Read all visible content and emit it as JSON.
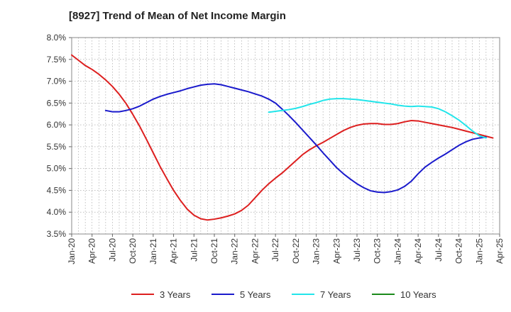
{
  "chart_data": {
    "type": "line",
    "title": "[8927]  Trend of Mean of Net Income Margin",
    "xlabel": "",
    "ylabel": "",
    "x_ticks": [
      "Jan-20",
      "Apr-20",
      "Jul-20",
      "Oct-20",
      "Jan-21",
      "Apr-21",
      "Jul-21",
      "Oct-21",
      "Jan-22",
      "Apr-22",
      "Jul-22",
      "Oct-22",
      "Jan-23",
      "Apr-23",
      "Jul-23",
      "Oct-23",
      "Jan-24",
      "Apr-24",
      "Jul-24",
      "Oct-24",
      "Jan-25",
      "Apr-25"
    ],
    "y_ticks": [
      "3.5%",
      "4.0%",
      "4.5%",
      "5.0%",
      "5.5%",
      "6.0%",
      "6.5%",
      "7.0%",
      "7.5%",
      "8.0%"
    ],
    "ylim": [
      3.5,
      8.0
    ],
    "grid": true,
    "legend_position": "bottom",
    "series": [
      {
        "name": "3 Years",
        "color": "#dd1f1f",
        "points": [
          [
            "Jan-20",
            7.6
          ],
          [
            "Feb-20",
            7.48
          ],
          [
            "Mar-20",
            7.36
          ],
          [
            "Apr-20",
            7.27
          ],
          [
            "May-20",
            7.16
          ],
          [
            "Jun-20",
            7.03
          ],
          [
            "Jul-20",
            6.88
          ],
          [
            "Aug-20",
            6.7
          ],
          [
            "Sep-20",
            6.49
          ],
          [
            "Oct-20",
            6.24
          ],
          [
            "Nov-20",
            5.97
          ],
          [
            "Dec-20",
            5.67
          ],
          [
            "Jan-21",
            5.36
          ],
          [
            "Feb-21",
            5.05
          ],
          [
            "Mar-21",
            4.77
          ],
          [
            "Apr-21",
            4.5
          ],
          [
            "May-21",
            4.27
          ],
          [
            "Jun-21",
            4.07
          ],
          [
            "Jul-21",
            3.93
          ],
          [
            "Aug-21",
            3.85
          ],
          [
            "Sep-21",
            3.82
          ],
          [
            "Oct-21",
            3.84
          ],
          [
            "Nov-21",
            3.87
          ],
          [
            "Dec-21",
            3.91
          ],
          [
            "Jan-22",
            3.96
          ],
          [
            "Feb-22",
            4.04
          ],
          [
            "Mar-22",
            4.16
          ],
          [
            "Apr-22",
            4.33
          ],
          [
            "May-22",
            4.5
          ],
          [
            "Jun-22",
            4.65
          ],
          [
            "Jul-22",
            4.78
          ],
          [
            "Aug-22",
            4.9
          ],
          [
            "Sep-22",
            5.04
          ],
          [
            "Oct-22",
            5.18
          ],
          [
            "Nov-22",
            5.32
          ],
          [
            "Dec-22",
            5.43
          ],
          [
            "Jan-23",
            5.52
          ],
          [
            "Feb-23",
            5.6
          ],
          [
            "Mar-23",
            5.69
          ],
          [
            "Apr-23",
            5.78
          ],
          [
            "May-23",
            5.87
          ],
          [
            "Jun-23",
            5.94
          ],
          [
            "Jul-23",
            5.99
          ],
          [
            "Aug-23",
            6.02
          ],
          [
            "Sep-23",
            6.03
          ],
          [
            "Oct-23",
            6.03
          ],
          [
            "Nov-23",
            6.01
          ],
          [
            "Dec-23",
            6.01
          ],
          [
            "Jan-24",
            6.03
          ],
          [
            "Feb-24",
            6.07
          ],
          [
            "Mar-24",
            6.1
          ],
          [
            "Apr-24",
            6.09
          ],
          [
            "May-24",
            6.06
          ],
          [
            "Jun-24",
            6.03
          ],
          [
            "Jul-24",
            6.0
          ],
          [
            "Aug-24",
            5.97
          ],
          [
            "Sep-24",
            5.94
          ],
          [
            "Oct-24",
            5.9
          ],
          [
            "Nov-24",
            5.86
          ],
          [
            "Dec-24",
            5.82
          ],
          [
            "Jan-25",
            5.78
          ],
          [
            "Feb-25",
            5.74
          ],
          [
            "Mar-25",
            5.7
          ]
        ]
      },
      {
        "name": "5 Years",
        "color": "#1a1acc",
        "points": [
          [
            "Jun-20",
            6.33
          ],
          [
            "Jul-20",
            6.3
          ],
          [
            "Aug-20",
            6.3
          ],
          [
            "Sep-20",
            6.33
          ],
          [
            "Oct-20",
            6.37
          ],
          [
            "Nov-20",
            6.43
          ],
          [
            "Dec-20",
            6.51
          ],
          [
            "Jan-21",
            6.59
          ],
          [
            "Feb-21",
            6.65
          ],
          [
            "Mar-21",
            6.7
          ],
          [
            "Apr-21",
            6.74
          ],
          [
            "May-21",
            6.78
          ],
          [
            "Jun-21",
            6.83
          ],
          [
            "Jul-21",
            6.87
          ],
          [
            "Aug-21",
            6.91
          ],
          [
            "Sep-21",
            6.93
          ],
          [
            "Oct-21",
            6.94
          ],
          [
            "Nov-21",
            6.92
          ],
          [
            "Dec-21",
            6.88
          ],
          [
            "Jan-22",
            6.84
          ],
          [
            "Feb-22",
            6.8
          ],
          [
            "Mar-22",
            6.76
          ],
          [
            "Apr-22",
            6.71
          ],
          [
            "May-22",
            6.66
          ],
          [
            "Jun-22",
            6.59
          ],
          [
            "Jul-22",
            6.5
          ],
          [
            "Aug-22",
            6.36
          ],
          [
            "Sep-22",
            6.21
          ],
          [
            "Oct-22",
            6.05
          ],
          [
            "Nov-22",
            5.88
          ],
          [
            "Dec-22",
            5.71
          ],
          [
            "Jan-23",
            5.54
          ],
          [
            "Feb-23",
            5.36
          ],
          [
            "Mar-23",
            5.19
          ],
          [
            "Apr-23",
            5.02
          ],
          [
            "May-23",
            4.88
          ],
          [
            "Jun-23",
            4.76
          ],
          [
            "Jul-23",
            4.65
          ],
          [
            "Aug-23",
            4.56
          ],
          [
            "Sep-23",
            4.49
          ],
          [
            "Oct-23",
            4.46
          ],
          [
            "Nov-23",
            4.45
          ],
          [
            "Dec-23",
            4.47
          ],
          [
            "Jan-24",
            4.51
          ],
          [
            "Feb-24",
            4.59
          ],
          [
            "Mar-24",
            4.71
          ],
          [
            "Apr-24",
            4.88
          ],
          [
            "May-24",
            5.03
          ],
          [
            "Jun-24",
            5.14
          ],
          [
            "Jul-24",
            5.24
          ],
          [
            "Aug-24",
            5.33
          ],
          [
            "Sep-24",
            5.43
          ],
          [
            "Oct-24",
            5.53
          ],
          [
            "Nov-24",
            5.61
          ],
          [
            "Dec-24",
            5.67
          ],
          [
            "Jan-25",
            5.7
          ],
          [
            "Feb-25",
            5.72
          ]
        ]
      },
      {
        "name": "7 Years",
        "color": "#22e5ea",
        "points": [
          [
            "Jun-22",
            6.29
          ],
          [
            "Jul-22",
            6.31
          ],
          [
            "Aug-22",
            6.33
          ],
          [
            "Sep-22",
            6.35
          ],
          [
            "Oct-22",
            6.38
          ],
          [
            "Nov-22",
            6.42
          ],
          [
            "Dec-22",
            6.47
          ],
          [
            "Jan-23",
            6.51
          ],
          [
            "Feb-23",
            6.56
          ],
          [
            "Mar-23",
            6.59
          ],
          [
            "Apr-23",
            6.6
          ],
          [
            "May-23",
            6.6
          ],
          [
            "Jun-23",
            6.59
          ],
          [
            "Jul-23",
            6.58
          ],
          [
            "Aug-23",
            6.56
          ],
          [
            "Sep-23",
            6.54
          ],
          [
            "Oct-23",
            6.52
          ],
          [
            "Nov-23",
            6.5
          ],
          [
            "Dec-23",
            6.48
          ],
          [
            "Jan-24",
            6.45
          ],
          [
            "Feb-24",
            6.43
          ],
          [
            "Mar-24",
            6.42
          ],
          [
            "Apr-24",
            6.43
          ],
          [
            "May-24",
            6.42
          ],
          [
            "Jun-24",
            6.41
          ],
          [
            "Jul-24",
            6.37
          ],
          [
            "Aug-24",
            6.3
          ],
          [
            "Sep-24",
            6.21
          ],
          [
            "Oct-24",
            6.11
          ],
          [
            "Nov-24",
            5.99
          ],
          [
            "Dec-24",
            5.86
          ],
          [
            "Jan-25",
            5.75
          ],
          [
            "Feb-25",
            5.7
          ]
        ]
      },
      {
        "name": "10 Years",
        "color": "#1b8a1b",
        "points": []
      }
    ]
  }
}
